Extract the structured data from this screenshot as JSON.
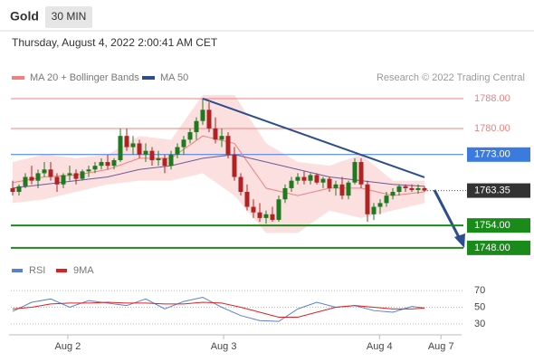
{
  "header": {
    "title": "Gold",
    "period": "30 MIN",
    "date": "Thursday, August 4, 2022 2:00:41 AM CET"
  },
  "chart_data": [
    {
      "type": "candlestick",
      "legend": [
        {
          "name": "MA 20 + Bollinger Bands",
          "color": "#f08080"
        },
        {
          "name": "MA 50",
          "color": "#2e4d8f"
        }
      ],
      "source": "Research © 2022 Trading Central",
      "up_color": "#1f7a1f",
      "down_color": "#b22222",
      "xlim": [
        -1,
        72
      ],
      "ylim": [
        1745.3,
        1792.6
      ],
      "xticks": [
        {
          "value": 8.7,
          "label": "Aug 2"
        },
        {
          "value": 33.3,
          "label": "Aug 3"
        },
        {
          "value": 57.9,
          "label": "Aug 4"
        },
        {
          "value": 67.6,
          "label": "Aug 7"
        }
      ],
      "candles": [
        [
          1764,
          1766,
          1762,
          1763
        ],
        [
          1763,
          1765,
          1762,
          1764.5
        ],
        [
          1764.5,
          1768,
          1764,
          1767
        ],
        [
          1767,
          1770,
          1765,
          1766
        ],
        [
          1766,
          1769,
          1764,
          1768
        ],
        [
          1768,
          1771,
          1767,
          1769
        ],
        [
          1769,
          1771,
          1766,
          1767
        ],
        [
          1767,
          1768,
          1763,
          1765
        ],
        [
          1765,
          1768,
          1764,
          1767.5
        ],
        [
          1767.5,
          1770,
          1766,
          1768
        ],
        [
          1768,
          1769,
          1765,
          1766.5
        ],
        [
          1766.5,
          1769,
          1766,
          1768.5
        ],
        [
          1768.5,
          1770,
          1767,
          1769
        ],
        [
          1769,
          1771,
          1768,
          1770
        ],
        [
          1770,
          1772,
          1769,
          1771
        ],
        [
          1771,
          1773,
          1769,
          1770
        ],
        [
          1770,
          1772,
          1769,
          1771.5
        ],
        [
          1771.5,
          1780,
          1771,
          1778
        ],
        [
          1778,
          1780,
          1774,
          1775
        ],
        [
          1775,
          1778,
          1773,
          1776
        ],
        [
          1776,
          1777,
          1772,
          1773
        ],
        [
          1773,
          1776,
          1771,
          1774
        ],
        [
          1774,
          1775,
          1770,
          1771.5
        ],
        [
          1771.5,
          1774,
          1770,
          1772
        ],
        [
          1772,
          1773,
          1768,
          1770
        ],
        [
          1770,
          1774,
          1769,
          1773
        ],
        [
          1773,
          1776,
          1772,
          1775
        ],
        [
          1775,
          1778,
          1773,
          1777
        ],
        [
          1777,
          1780,
          1776,
          1779
        ],
        [
          1779,
          1783,
          1777,
          1782
        ],
        [
          1782,
          1788,
          1781,
          1785
        ],
        [
          1785,
          1787,
          1779,
          1780
        ],
        [
          1780,
          1783,
          1776,
          1777
        ],
        [
          1777,
          1780,
          1775,
          1778
        ],
        [
          1778,
          1779,
          1772,
          1773
        ],
        [
          1773,
          1775,
          1766,
          1767
        ],
        [
          1767,
          1768,
          1762,
          1763
        ],
        [
          1763,
          1765,
          1758,
          1759
        ],
        [
          1759,
          1761,
          1756,
          1757.5
        ],
        [
          1757.5,
          1760,
          1755,
          1756
        ],
        [
          1756,
          1758,
          1754.5,
          1757
        ],
        [
          1757,
          1759,
          1755,
          1755.5
        ],
        [
          1755.5,
          1762,
          1755,
          1761
        ],
        [
          1761,
          1765,
          1760,
          1764
        ],
        [
          1764,
          1767,
          1763,
          1766
        ],
        [
          1766,
          1768,
          1765,
          1767
        ],
        [
          1767,
          1768.5,
          1765,
          1766
        ],
        [
          1766,
          1768,
          1765,
          1767.5
        ],
        [
          1767.5,
          1768,
          1765,
          1765.5
        ],
        [
          1765.5,
          1767,
          1764,
          1766.5
        ],
        [
          1766.5,
          1767,
          1763,
          1764
        ],
        [
          1764,
          1766,
          1762,
          1765
        ],
        [
          1765,
          1767,
          1761,
          1762
        ],
        [
          1762,
          1766,
          1761,
          1765.5
        ],
        [
          1765.5,
          1772,
          1765,
          1771
        ],
        [
          1771,
          1772,
          1764,
          1765
        ],
        [
          1765,
          1766,
          1755,
          1757
        ],
        [
          1757,
          1760,
          1755.5,
          1759
        ],
        [
          1759,
          1761,
          1757,
          1760
        ],
        [
          1760,
          1763,
          1759,
          1762
        ],
        [
          1762,
          1764,
          1761,
          1763
        ],
        [
          1763,
          1765,
          1762,
          1764.5
        ],
        [
          1764.5,
          1765,
          1763,
          1764
        ],
        [
          1764,
          1765,
          1763,
          1763.5
        ],
        [
          1763.5,
          1765,
          1762.5,
          1764
        ],
        [
          1764,
          1764.5,
          1763,
          1763.35
        ]
      ],
      "overlay_x": [
        0,
        5,
        10,
        15,
        20,
        25,
        30,
        35,
        40,
        45,
        50,
        55,
        60,
        65
      ],
      "bollinger": {
        "color": "#fbd3d3",
        "upper": [
          1771,
          1773,
          1772,
          1773,
          1778,
          1777,
          1789,
          1789,
          1776,
          1771,
          1770,
          1773,
          1766,
          1766
        ],
        "lower": [
          1760,
          1761,
          1763,
          1765,
          1766,
          1766,
          1768,
          1762,
          1752,
          1752,
          1758,
          1756,
          1758,
          1760
        ]
      },
      "series": [
        {
          "name": "MA 20",
          "color": "#f08080",
          "values": [
            1765.5,
            1767,
            1767.5,
            1769,
            1772,
            1772,
            1778,
            1776,
            1764,
            1762,
            1764,
            1764,
            1762,
            1763
          ]
        },
        {
          "name": "MA 50",
          "color": "#6a5a9a",
          "values": [
            1764,
            1765,
            1766,
            1767,
            1769,
            1770,
            1772,
            1773,
            1771,
            1769,
            1767,
            1766,
            1765,
            1764.5
          ]
        }
      ],
      "trendline": {
        "color": "#2e4d8f",
        "x": [
          30,
          65
        ],
        "y": [
          1788,
          1766.9
        ]
      },
      "levels": [
        {
          "value": 1788,
          "label": "1788.00",
          "kind": "resistance",
          "color": "#f08080"
        },
        {
          "value": 1780,
          "label": "1780.00",
          "kind": "resistance",
          "color": "#f08080"
        },
        {
          "value": 1773,
          "label": "1773.00",
          "kind": "pivot",
          "color": "#3b7be0"
        },
        {
          "value": 1763.35,
          "label": "1763.35",
          "kind": "last",
          "color": "#333333"
        },
        {
          "value": 1754,
          "label": "1754.00",
          "kind": "support",
          "color": "#1a8a1a"
        },
        {
          "value": 1748,
          "label": "1748.00",
          "kind": "support",
          "color": "#1a8a1a"
        }
      ]
    },
    {
      "type": "line",
      "xlim": [
        -1,
        72
      ],
      "ylim": [
        19,
        93
      ],
      "yticks": [
        70,
        50,
        30
      ],
      "x": [
        0,
        3,
        6,
        9,
        12,
        15,
        18,
        21,
        24,
        27,
        30,
        33,
        36,
        39,
        42,
        45,
        48,
        51,
        54,
        57,
        60,
        63,
        65
      ],
      "series": [
        {
          "name": "RSI",
          "color": "#5b7fd6",
          "values": [
            45,
            56,
            60,
            50,
            58,
            55,
            52,
            60,
            48,
            57,
            62,
            50,
            40,
            34,
            33,
            48,
            56,
            50,
            52,
            46,
            44,
            51,
            49
          ]
        },
        {
          "name": "9MA",
          "color": "#e02020",
          "values": [
            48,
            50,
            54,
            55,
            55,
            56,
            55,
            55,
            54,
            54,
            56,
            55,
            50,
            44,
            38,
            38,
            44,
            50,
            52,
            50,
            48,
            48,
            49
          ]
        }
      ]
    }
  ]
}
